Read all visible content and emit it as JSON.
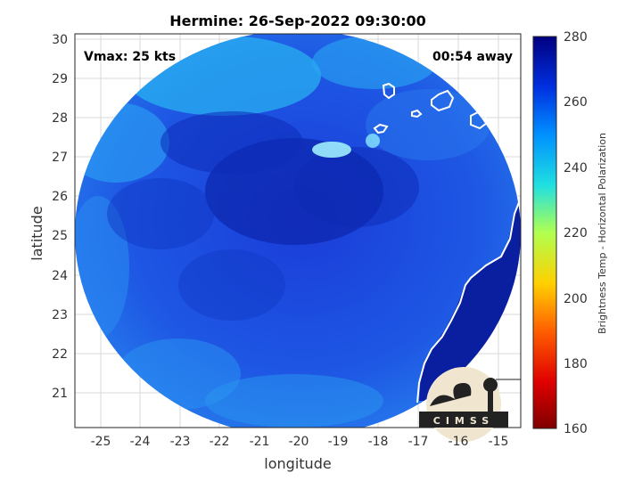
{
  "title": "Hermine: 26-Sep-2022 09:30:00",
  "vmax": "Vmax: 25 kts",
  "away": "00:54 away",
  "xlabel": "longitude",
  "ylabel": "latitude",
  "colorbar_label": "Brightness Temp - Horizontal Polarization",
  "logo_text": "CIMSS",
  "x_ticks": [
    "-25",
    "-24",
    "-23",
    "-22",
    "-21",
    "-20",
    "-19",
    "-18",
    "-17",
    "-16",
    "-15"
  ],
  "y_ticks": [
    "21",
    "22",
    "23",
    "24",
    "25",
    "26",
    "27",
    "28",
    "29",
    "30"
  ],
  "cbar_ticks": [
    "160",
    "180",
    "200",
    "220",
    "240",
    "260",
    "280"
  ],
  "colors": {
    "ocean_deep": "#1428c8",
    "ocean_mid": "#1e5ae6",
    "warm": "#0a1e96",
    "cold": "#28c8f0",
    "land": "#0a1ea0"
  }
}
